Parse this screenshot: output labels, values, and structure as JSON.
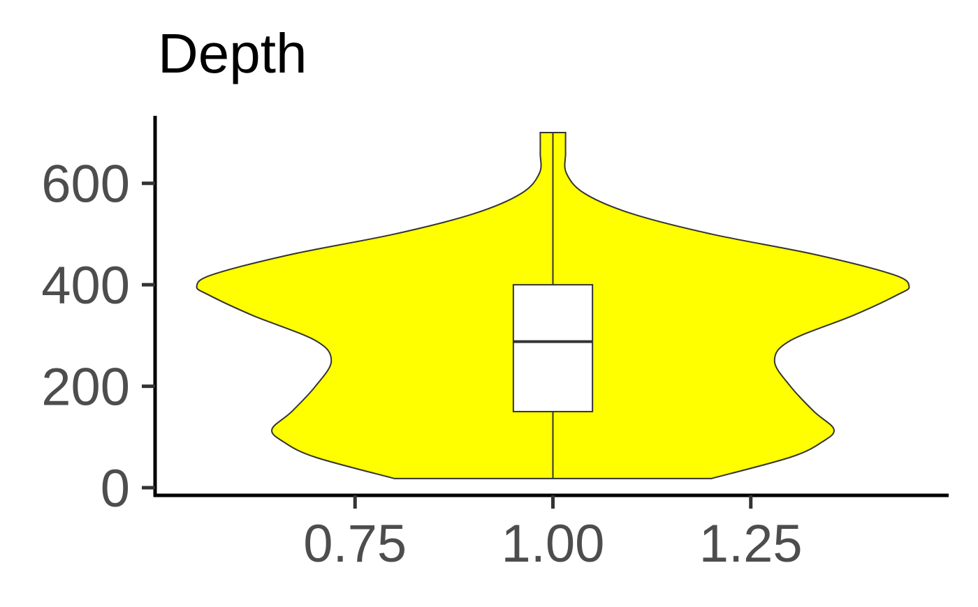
{
  "chart_data": {
    "type": "violin",
    "title": "Depth",
    "xlabel": "",
    "ylabel": "",
    "x_ticks": [
      0.75,
      1.0,
      1.25
    ],
    "x_tick_labels": [
      "0.75",
      "1.00",
      "1.25"
    ],
    "y_ticks": [
      0,
      200,
      400,
      600
    ],
    "y_tick_labels": [
      "0",
      "200",
      "400",
      "600"
    ],
    "xlim": [
      0.5,
      1.5
    ],
    "ylim": [
      0,
      700
    ],
    "violin": {
      "x_center": 1.0,
      "fill_color": "#ffff00",
      "outline_color": "#333333",
      "y_min": 18,
      "y_max": 700,
      "half_width_profile": [
        {
          "y": 18,
          "half_width": 0.2
        },
        {
          "y": 60,
          "half_width": 0.3
        },
        {
          "y": 90,
          "half_width": 0.34
        },
        {
          "y": 115,
          "half_width": 0.355
        },
        {
          "y": 150,
          "half_width": 0.33
        },
        {
          "y": 200,
          "half_width": 0.3
        },
        {
          "y": 250,
          "half_width": 0.28
        },
        {
          "y": 290,
          "half_width": 0.3
        },
        {
          "y": 340,
          "half_width": 0.38
        },
        {
          "y": 380,
          "half_width": 0.435
        },
        {
          "y": 397,
          "half_width": 0.45
        },
        {
          "y": 420,
          "half_width": 0.43
        },
        {
          "y": 460,
          "half_width": 0.33
        },
        {
          "y": 500,
          "half_width": 0.2
        },
        {
          "y": 540,
          "half_width": 0.1
        },
        {
          "y": 580,
          "half_width": 0.04
        },
        {
          "y": 620,
          "half_width": 0.017
        },
        {
          "y": 660,
          "half_width": 0.016
        },
        {
          "y": 700,
          "half_width": 0.016
        }
      ]
    },
    "boxplot": {
      "box_color": "#ffffff",
      "line_color": "#333333",
      "box_half_width": 0.05,
      "whisker_low": 18,
      "q1": 150,
      "median": 288,
      "q3": 400,
      "whisker_high": 700
    },
    "grid": false,
    "legend": "none"
  }
}
